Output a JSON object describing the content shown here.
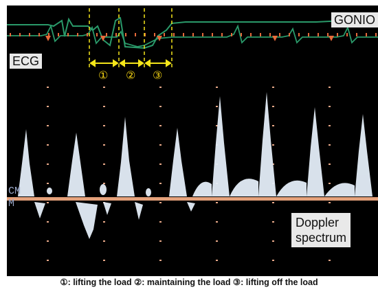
{
  "labels": {
    "gonio": "GONIO",
    "ecg": "ECG",
    "doppler_line1": "Doppler",
    "doppler_line2": "spectrum",
    "cm": "CM",
    "m": "M"
  },
  "phases": [
    {
      "number": "①"
    },
    {
      "number": "②"
    },
    {
      "number": "③"
    }
  ],
  "caption": "①: lifting the load  ②: maintaining the load  ③: lifting off the load",
  "colors": {
    "background": "#000000",
    "ecg_trace": "#2a9a6a",
    "marker": "#e86a3a",
    "phase_lines": "#f5e61a",
    "baseline": "#e3a07a",
    "doppler": "#e4eef8"
  }
}
